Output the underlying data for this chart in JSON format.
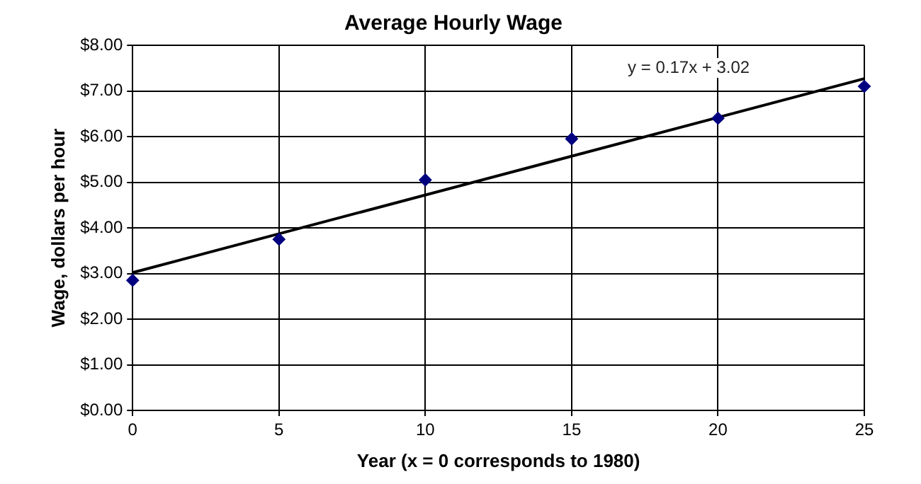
{
  "chart_data": {
    "type": "scatter",
    "title": "Average Hourly Wage",
    "xlabel": "Year (x = 0 corresponds to 1980)",
    "ylabel": "Wage, dollars per hour",
    "series": [
      {
        "marker": "diamond",
        "color": "#000080",
        "x": [
          0,
          5,
          10,
          15,
          20,
          25
        ],
        "values": [
          2.85,
          3.75,
          5.05,
          5.95,
          6.4,
          7.1
        ]
      },
      {
        "type": "line",
        "marker": "none",
        "color": "#000000",
        "x": [
          0,
          25
        ],
        "values": [
          3.02,
          7.27
        ]
      }
    ],
    "xlim": [
      0,
      25
    ],
    "xticks": [
      0,
      5,
      10,
      15,
      20,
      25
    ],
    "ylim": [
      0,
      8
    ],
    "yticks": [
      {
        "value": 0,
        "label": "$0.00"
      },
      {
        "value": 1,
        "label": "$1.00"
      },
      {
        "value": 2,
        "label": "$2.00"
      },
      {
        "value": 3,
        "label": "$3.00"
      },
      {
        "value": 4,
        "label": "$4.00"
      },
      {
        "value": 5,
        "label": "$5.00"
      },
      {
        "value": 6,
        "label": "$6.00"
      },
      {
        "value": 7,
        "label": "$7.00"
      },
      {
        "value": 8,
        "label": "$8.00"
      }
    ],
    "annotations": [
      "y = 0.17x + 3.02"
    ],
    "grid": true,
    "legend": false
  }
}
